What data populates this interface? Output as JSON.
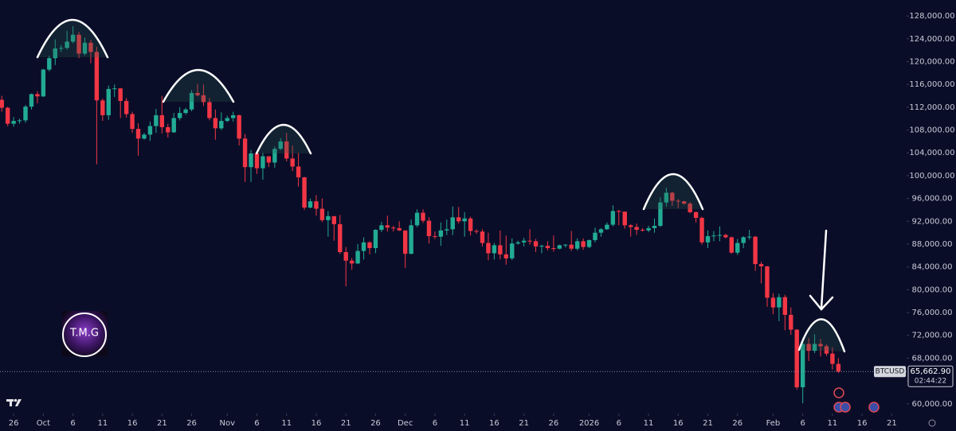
{
  "chart_data": {
    "type": "candlestick",
    "symbol": "BTCUSD",
    "x": [
      -2,
      -1,
      0,
      1,
      2,
      3,
      4,
      5,
      6,
      7,
      8,
      9,
      10,
      11,
      12,
      13,
      14,
      15,
      16,
      17,
      18,
      19,
      20,
      21,
      22,
      23,
      24,
      25,
      26,
      27,
      28,
      29,
      30,
      31,
      32,
      33,
      34,
      35,
      36,
      37,
      38,
      39,
      40,
      41,
      42,
      43,
      44,
      45,
      46,
      47,
      48,
      49,
      50,
      51,
      52,
      53,
      54,
      55,
      56,
      57,
      58,
      59,
      60,
      61,
      62,
      63,
      64,
      65,
      66,
      67,
      68,
      69,
      70,
      71,
      72,
      73,
      74,
      75,
      76,
      77,
      78,
      79,
      80,
      81,
      82,
      83,
      84,
      85,
      86,
      87,
      88,
      89,
      90,
      91,
      92,
      93,
      94,
      95,
      96,
      97,
      98,
      99,
      100,
      101,
      102,
      103,
      104,
      105,
      106,
      107,
      108,
      109,
      110,
      111,
      112,
      113,
      114,
      115,
      116,
      117,
      118,
      119,
      120,
      121,
      122,
      123,
      124,
      125,
      126,
      127,
      128,
      129,
      130,
      131,
      132,
      133,
      134,
      135,
      136,
      137,
      138,
      139
    ],
    "open": [
      113300,
      111900,
      109100,
      109600,
      109700,
      112100,
      114300,
      113900,
      118600,
      120600,
      122300,
      122400,
      123500,
      124700,
      121400,
      123300,
      121700,
      113200,
      110600,
      115200,
      115300,
      113100,
      110800,
      108200,
      106500,
      107200,
      108700,
      110600,
      108500,
      107600,
      110100,
      111000,
      111600,
      114500,
      114100,
      112900,
      110100,
      108300,
      109600,
      110100,
      110600,
      106500,
      101500,
      103900,
      101300,
      103400,
      102300,
      104700,
      106000,
      103000,
      101600,
      99700,
      94400,
      95500,
      94200,
      92200,
      92900,
      91500,
      86600,
      85100,
      84600,
      86800,
      88300,
      87300,
      90500,
      91300,
      90900,
      90800,
      90400,
      86300,
      91300,
      93500,
      92100,
      89400,
      89300,
      90400,
      90600,
      92700,
      92000,
      92500,
      90300,
      90200,
      88200,
      86400,
      87800,
      86200,
      85500,
      88100,
      88300,
      88600,
      88500,
      87600,
      87700,
      87300,
      87200,
      87800,
      87900,
      87200,
      88500,
      87500,
      88700,
      90000,
      90600,
      91400,
      93800,
      93700,
      91300,
      91000,
      90500,
      90400,
      90800,
      91200,
      95300,
      97000,
      95600,
      95500,
      95100,
      93600,
      92600,
      88300,
      89400,
      89500,
      89600,
      89200,
      86500,
      88200,
      89200,
      89300,
      84500,
      84100,
      78600,
      76900,
      78700,
      75600,
      73000,
      62900,
      70500,
      69300,
      70500,
      70100,
      68800,
      67000
    ],
    "high": [
      114000,
      112100,
      110300,
      110000,
      112400,
      114400,
      114800,
      118700,
      121000,
      123900,
      122900,
      125400,
      126200,
      125200,
      124200,
      123800,
      122600,
      113500,
      115800,
      116000,
      115400,
      113600,
      111200,
      109200,
      107500,
      109500,
      111700,
      114000,
      109100,
      111000,
      112000,
      111900,
      115000,
      116100,
      116000,
      113600,
      111600,
      111100,
      110500,
      111200,
      110700,
      107300,
      104500,
      104200,
      104000,
      103400,
      105100,
      106600,
      107500,
      105300,
      104000,
      99800,
      96000,
      96600,
      96000,
      93800,
      92900,
      93100,
      87500,
      85600,
      88000,
      89200,
      88500,
      90600,
      91900,
      93000,
      91200,
      92000,
      90400,
      92300,
      94100,
      94100,
      92700,
      90200,
      91800,
      92300,
      94600,
      94500,
      93600,
      92800,
      90600,
      90600,
      90000,
      88200,
      90400,
      89500,
      89000,
      88600,
      89100,
      90600,
      88900,
      87900,
      88500,
      89500,
      87900,
      88000,
      90300,
      89000,
      89000,
      88800,
      90900,
      90800,
      91800,
      94800,
      94000,
      93700,
      91500,
      91600,
      90800,
      91200,
      92500,
      96200,
      97900,
      97200,
      95900,
      95600,
      95400,
      93700,
      92800,
      90400,
      90300,
      91100,
      89800,
      89300,
      88900,
      89400,
      90500,
      89400,
      84900,
      84200,
      79400,
      79300,
      79100,
      76900,
      73100,
      71600,
      71500,
      72200,
      71400,
      70400,
      69900,
      68000
    ],
    "low": [
      111200,
      108700,
      108600,
      109100,
      109300,
      111600,
      112700,
      113800,
      118300,
      119400,
      121700,
      122100,
      123200,
      120600,
      121100,
      119700,
      102000,
      109600,
      109800,
      113800,
      110100,
      110200,
      107500,
      103500,
      106300,
      106100,
      107500,
      107400,
      106700,
      107500,
      109700,
      110700,
      111300,
      113900,
      112200,
      109700,
      106300,
      108000,
      109400,
      109500,
      105300,
      98900,
      98900,
      100300,
      99300,
      101500,
      101400,
      104500,
      102500,
      100800,
      98100,
      94000,
      94300,
      93000,
      91900,
      89300,
      88600,
      86300,
      80600,
      83500,
      84500,
      85300,
      86200,
      86400,
      90100,
      90200,
      90200,
      90300,
      83800,
      86200,
      91000,
      91700,
      88100,
      88900,
      87700,
      89600,
      89600,
      91600,
      89300,
      89500,
      89800,
      87600,
      85200,
      85300,
      85300,
      84400,
      85200,
      87900,
      87600,
      87900,
      86600,
      86400,
      86900,
      86700,
      87100,
      87400,
      86800,
      86900,
      87000,
      87300,
      88300,
      89300,
      90500,
      91100,
      91300,
      90700,
      89300,
      89600,
      90200,
      90100,
      90000,
      91000,
      94600,
      94700,
      94300,
      94900,
      93400,
      91800,
      87900,
      87300,
      88500,
      88500,
      89000,
      86300,
      86100,
      87300,
      88800,
      83300,
      81100,
      77000,
      75700,
      74500,
      72900,
      72100,
      62500,
      60100,
      67500,
      68900,
      68300,
      68400,
      66000,
      65400
    ],
    "close": [
      111900,
      109100,
      109600,
      109700,
      112100,
      114300,
      113900,
      118600,
      120600,
      122300,
      122400,
      123500,
      124700,
      121400,
      123300,
      121700,
      113200,
      110600,
      115200,
      115300,
      113100,
      110800,
      108200,
      106500,
      107200,
      108700,
      110600,
      108500,
      107600,
      110100,
      111000,
      111600,
      114500,
      114100,
      112900,
      110100,
      108300,
      109600,
      110100,
      110600,
      106500,
      101500,
      103900,
      101300,
      103400,
      102300,
      104700,
      106000,
      103000,
      101600,
      99700,
      94400,
      95500,
      94200,
      92200,
      92900,
      91500,
      86600,
      85100,
      84600,
      86800,
      88300,
      87300,
      90500,
      91300,
      90900,
      90800,
      90400,
      86300,
      91300,
      93500,
      92100,
      89400,
      89300,
      90400,
      90600,
      92700,
      92000,
      92500,
      90300,
      90200,
      88200,
      86400,
      87800,
      86200,
      85500,
      88100,
      88300,
      88600,
      88500,
      87600,
      87700,
      87300,
      87200,
      87800,
      87900,
      87200,
      88500,
      87500,
      88700,
      90000,
      90600,
      91400,
      93800,
      93700,
      91300,
      91000,
      90500,
      90400,
      90800,
      91200,
      95300,
      97000,
      95600,
      95500,
      95100,
      93600,
      92600,
      88300,
      89400,
      89500,
      89600,
      89200,
      86500,
      88200,
      89200,
      89300,
      84500,
      84100,
      78600,
      76900,
      78700,
      75600,
      73000,
      62900,
      70500,
      69300,
      70500,
      70100,
      68800,
      67000,
      65662.9
    ],
    "up_color": "#22ab94",
    "down_color": "#f23645",
    "xlim": [
      -2.3,
      150.5
    ],
    "ylim": [
      58300,
      130800
    ],
    "xticks": [
      {
        "value": 0,
        "label": "26"
      },
      {
        "value": 5,
        "label": "Oct"
      },
      {
        "value": 10,
        "label": "6"
      },
      {
        "value": 15,
        "label": "11"
      },
      {
        "value": 20,
        "label": "16"
      },
      {
        "value": 25,
        "label": "21"
      },
      {
        "value": 30,
        "label": "26"
      },
      {
        "value": 36,
        "label": "Nov"
      },
      {
        "value": 41,
        "label": "6"
      },
      {
        "value": 46,
        "label": "11"
      },
      {
        "value": 51,
        "label": "16"
      },
      {
        "value": 56,
        "label": "21"
      },
      {
        "value": 61,
        "label": "26"
      },
      {
        "value": 66,
        "label": "Dec"
      },
      {
        "value": 71,
        "label": "6"
      },
      {
        "value": 76,
        "label": "11"
      },
      {
        "value": 81,
        "label": "16"
      },
      {
        "value": 86,
        "label": "21"
      },
      {
        "value": 91,
        "label": "26"
      },
      {
        "value": 97,
        "label": "2026"
      },
      {
        "value": 102,
        "label": "6"
      },
      {
        "value": 107,
        "label": "11"
      },
      {
        "value": 112,
        "label": "16"
      },
      {
        "value": 117,
        "label": "21"
      },
      {
        "value": 122,
        "label": "26"
      },
      {
        "value": 128,
        "label": "Feb"
      },
      {
        "value": 133,
        "label": "6"
      },
      {
        "value": 138,
        "label": "11"
      },
      {
        "value": 143,
        "label": "16"
      },
      {
        "value": 148,
        "label": "21"
      }
    ],
    "yticks": [
      {
        "value": 60000,
        "label": "60,000.00"
      },
      {
        "value": 64000,
        "label": "64,000.00"
      },
      {
        "value": 68000,
        "label": "68,000.00"
      },
      {
        "value": 72000,
        "label": "72,000.00"
      },
      {
        "value": 76000,
        "label": "76,000.00"
      },
      {
        "value": 80000,
        "label": "80,000.00"
      },
      {
        "value": 84000,
        "label": "84,000.00"
      },
      {
        "value": 88000,
        "label": "88,000.00"
      },
      {
        "value": 92000,
        "label": "92,000.00"
      },
      {
        "value": 96000,
        "label": "96,000.00"
      },
      {
        "value": 100000,
        "label": "100,000.00"
      },
      {
        "value": 104000,
        "label": "104,000.00"
      },
      {
        "value": 108000,
        "label": "108,000.00"
      },
      {
        "value": 112000,
        "label": "112,000.00"
      },
      {
        "value": 116000,
        "label": "116,000.00"
      },
      {
        "value": 120000,
        "label": "120,000.00"
      },
      {
        "value": 124000,
        "label": "124,000.00"
      },
      {
        "value": 128000,
        "label": "128,000.00"
      }
    ],
    "last_price": {
      "value": 65662.9,
      "label": "65,662.90"
    },
    "countdown": "02:44:22",
    "logo_text": "T.M.G"
  }
}
